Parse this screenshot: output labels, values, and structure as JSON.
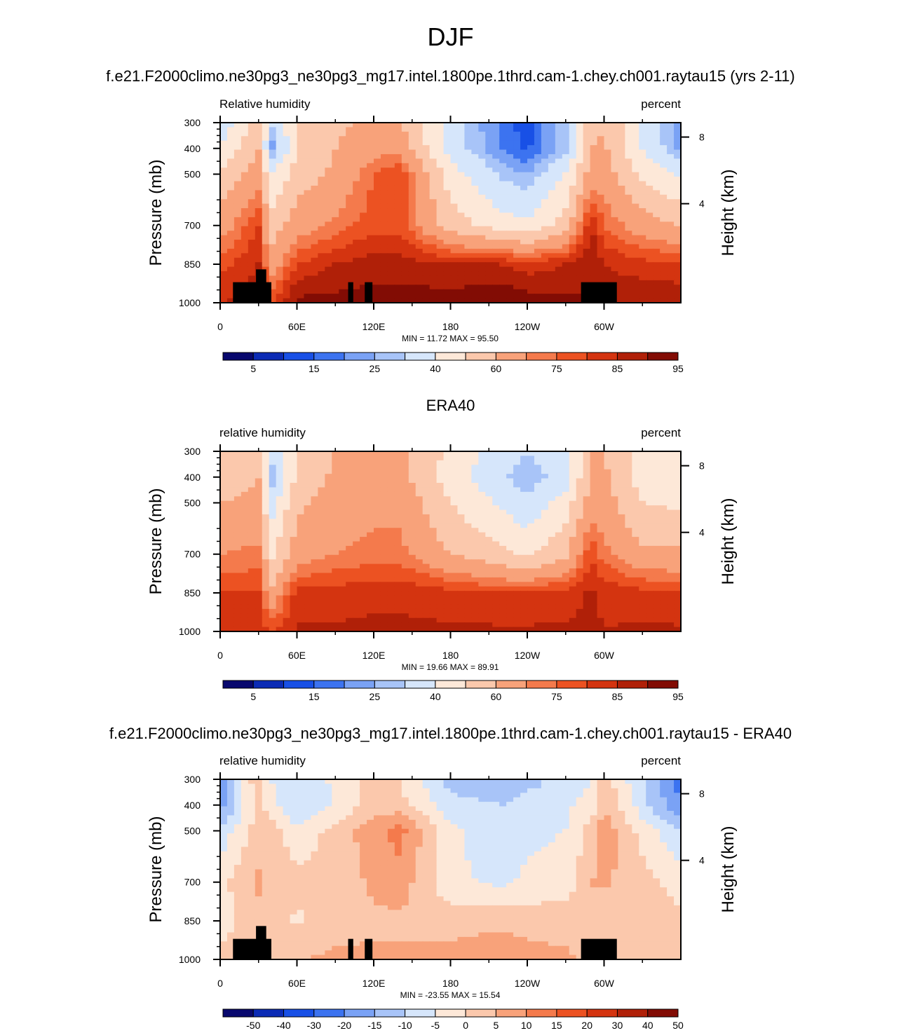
{
  "main_title": "DJF",
  "panels": [
    {
      "title": "f.e21.F2000climo.ne30pg3_ne30pg3_mg17.intel.1800pe.1thrd.cam-1.chey.ch001.raytau15 (yrs 2-11)",
      "left_label": "Relative humidity",
      "right_label": "percent",
      "stats": "MIN =  11.72  MAX =  95.50",
      "palette": "rh",
      "show_topo": true
    },
    {
      "title": "ERA40",
      "left_label": "relative humidity",
      "right_label": "percent",
      "stats": "MIN =  19.66  MAX =  89.91",
      "palette": "rh",
      "show_topo": false
    },
    {
      "title": "f.e21.F2000climo.ne30pg3_ne30pg3_mg17.intel.1800pe.1thrd.cam-1.chey.ch001.raytau15 - ERA40",
      "left_label": "relative humidity",
      "right_label": "percent",
      "stats": "MIN = -23.55  MAX =  15.54",
      "palette": "diff",
      "show_topo": true
    }
  ],
  "axes": {
    "ylabel": "Pressure (mb)",
    "ylabel_right": "Height (km)",
    "x_ticks": [
      "0",
      "60E",
      "120E",
      "180",
      "120W",
      "60W"
    ],
    "y_ticks": [
      "300",
      "400",
      "500",
      "700",
      "850",
      "1000"
    ],
    "y_right_ticks": [
      "8",
      "4"
    ]
  },
  "palettes": {
    "rh": {
      "labels": [
        "5",
        "15",
        "25",
        "40",
        "60",
        "75",
        "85",
        "95"
      ],
      "colors": [
        "#08086e",
        "#0b2bb5",
        "#1850e6",
        "#3c73f0",
        "#7aa2f5",
        "#a8c4f8",
        "#d6e6fb",
        "#fde8d8",
        "#fbc8ac",
        "#f8a27a",
        "#f47a4c",
        "#ec5222",
        "#d43410",
        "#b02008",
        "#820c04"
      ]
    },
    "diff": {
      "labels": [
        "-50",
        "-40",
        "-30",
        "-20",
        "-15",
        "-10",
        "-5",
        "0",
        "5",
        "10",
        "15",
        "20",
        "30",
        "40",
        "50"
      ],
      "colors": [
        "#08086e",
        "#0b2bb5",
        "#1850e6",
        "#3c73f0",
        "#7aa2f5",
        "#a8c4f8",
        "#d6e6fb",
        "#fde8d8",
        "#fbc8ac",
        "#f8a27a",
        "#f47a4c",
        "#ec5222",
        "#d43410",
        "#b02008",
        "#820c04"
      ]
    }
  },
  "chart_data": [
    {
      "type": "heatmap",
      "title": "f.e21.F2000climo.ne30pg3_ne30pg3_mg17.intel.1800pe.1thrd.cam-1.chey.ch001.raytau15 (yrs 2-11)",
      "variable": "Relative humidity",
      "units": "percent",
      "x": [
        0,
        30,
        40,
        60,
        90,
        120,
        140,
        180,
        220,
        240,
        270,
        290,
        300,
        330,
        360
      ],
      "y": [
        300,
        400,
        500,
        700,
        850,
        1000
      ],
      "z": [
        [
          32,
          55,
          30,
          50,
          58,
          62,
          60,
          35,
          18,
          12,
          30,
          55,
          60,
          38,
          20
        ],
        [
          40,
          60,
          22,
          50,
          60,
          66,
          68,
          35,
          20,
          14,
          28,
          60,
          62,
          40,
          22
        ],
        [
          52,
          65,
          40,
          55,
          62,
          75,
          80,
          45,
          28,
          25,
          40,
          65,
          65,
          48,
          38
        ],
        [
          65,
          80,
          55,
          65,
          72,
          78,
          78,
          55,
          45,
          42,
          55,
          85,
          75,
          65,
          60
        ],
        [
          78,
          85,
          65,
          80,
          85,
          88,
          88,
          85,
          85,
          82,
          85,
          90,
          85,
          82,
          80
        ],
        [
          85,
          88,
          80,
          92,
          92,
          92,
          92,
          93,
          95,
          93,
          92,
          90,
          88,
          90,
          90
        ]
      ],
      "zmin": 11.72,
      "zmax": 95.5,
      "xlim": [
        0,
        360
      ],
      "ylim": [
        300,
        1000
      ]
    },
    {
      "type": "heatmap",
      "title": "ERA40",
      "variable": "relative humidity",
      "units": "percent",
      "x": [
        0,
        30,
        40,
        60,
        90,
        120,
        140,
        180,
        220,
        240,
        270,
        290,
        300,
        330,
        360
      ],
      "y": [
        300,
        400,
        500,
        700,
        850,
        1000
      ],
      "z": [
        [
          50,
          58,
          35,
          52,
          60,
          62,
          62,
          48,
          35,
          30,
          38,
          60,
          60,
          45,
          42
        ],
        [
          55,
          60,
          25,
          52,
          62,
          64,
          64,
          45,
          32,
          25,
          35,
          62,
          62,
          45,
          40
        ],
        [
          60,
          62,
          35,
          58,
          64,
          68,
          68,
          50,
          38,
          32,
          45,
          65,
          65,
          50,
          48
        ],
        [
          70,
          72,
          48,
          65,
          70,
          72,
          72,
          60,
          52,
          48,
          58,
          80,
          72,
          62,
          62
        ],
        [
          80,
          80,
          62,
          82,
          82,
          84,
          84,
          82,
          80,
          80,
          82,
          86,
          84,
          82,
          80
        ],
        [
          84,
          82,
          80,
          86,
          86,
          86,
          86,
          86,
          86,
          86,
          86,
          86,
          85,
          86,
          86
        ]
      ],
      "zmin": 19.66,
      "zmax": 89.91,
      "xlim": [
        0,
        360
      ],
      "ylim": [
        300,
        1000
      ]
    },
    {
      "type": "heatmap",
      "title": "f.e21.F2000climo.ne30pg3_ne30pg3_mg17.intel.1800pe.1thrd.cam-1.chey.ch001.raytau15 - ERA40",
      "variable": "relative humidity",
      "units": "percent",
      "x": [
        0,
        30,
        40,
        60,
        90,
        120,
        140,
        180,
        220,
        240,
        270,
        290,
        300,
        330,
        360
      ],
      "y": [
        300,
        400,
        500,
        700,
        850,
        1000
      ],
      "z": [
        [
          -22,
          5,
          -5,
          -8,
          -4,
          2,
          0,
          -12,
          -15,
          -12,
          -8,
          -5,
          3,
          -10,
          -22
        ],
        [
          -18,
          3,
          -4,
          -10,
          -5,
          3,
          2,
          -8,
          -10,
          -8,
          -6,
          -3,
          5,
          -8,
          -20
        ],
        [
          -8,
          2,
          3,
          -4,
          2,
          8,
          12,
          -4,
          -8,
          -6,
          -5,
          2,
          8,
          -2,
          -10
        ],
        [
          -2,
          6,
          3,
          2,
          2,
          6,
          8,
          -4,
          -6,
          -4,
          -3,
          5,
          6,
          2,
          -2
        ],
        [
          -2,
          3,
          2,
          -1,
          3,
          4,
          4,
          3,
          4,
          3,
          3,
          4,
          1,
          3,
          1
        ],
        [
          1,
          3,
          0,
          5,
          6,
          6,
          6,
          7,
          8,
          7,
          6,
          3,
          3,
          4,
          2
        ]
      ],
      "zmin": -23.55,
      "zmax": 15.54,
      "xlim": [
        0,
        360
      ],
      "ylim": [
        300,
        1000
      ]
    }
  ]
}
